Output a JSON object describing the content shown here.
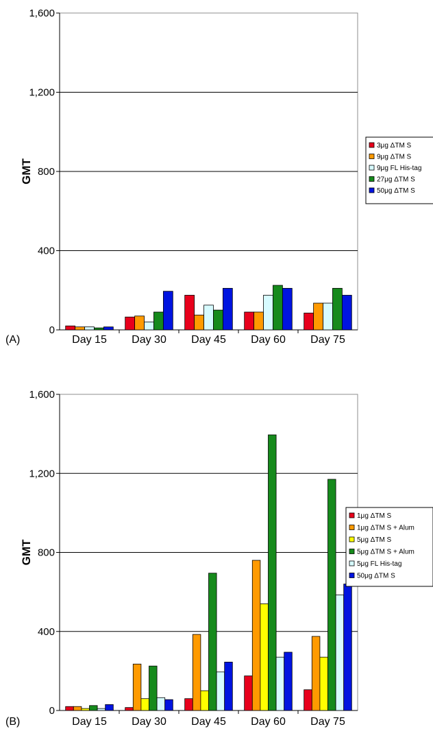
{
  "chart_data": [
    {
      "type": "bar",
      "panel_label": "(A)",
      "ylabel": "GMT",
      "ylim": [
        0,
        1600
      ],
      "yticks": [
        "0",
        "400",
        "800",
        "1,200",
        "1,600"
      ],
      "ytick_values": [
        0,
        400,
        800,
        1200,
        1600
      ],
      "grid": true,
      "legend_position": "right",
      "categories": [
        "Day 15",
        "Day 30",
        "Day 45",
        "Day 60",
        "Day 75"
      ],
      "series": [
        {
          "name": "3μg ΔTM S",
          "color": "#e8001c",
          "values": [
            20,
            65,
            175,
            90,
            85
          ]
        },
        {
          "name": "9μg ΔTM S",
          "color": "#ff9a00",
          "values": [
            15,
            70,
            75,
            90,
            135
          ]
        },
        {
          "name": "9μg FL His-tag",
          "color": "#d7fbff",
          "values": [
            15,
            40,
            125,
            175,
            135
          ]
        },
        {
          "name": "27μg ΔTM S",
          "color": "#168a1c",
          "values": [
            10,
            90,
            100,
            225,
            210
          ]
        },
        {
          "name": "50μg ΔTM S",
          "color": "#0014e0",
          "values": [
            15,
            195,
            210,
            210,
            175
          ]
        }
      ]
    },
    {
      "type": "bar",
      "panel_label": "(B)",
      "ylabel": "GMT",
      "ylim": [
        0,
        1600
      ],
      "yticks": [
        "0",
        "400",
        "800",
        "1,200",
        "1,600"
      ],
      "ytick_values": [
        0,
        400,
        800,
        1200,
        1600
      ],
      "grid": true,
      "legend_position": "right",
      "categories": [
        "Day 15",
        "Day 30",
        "Day 45",
        "Day 60",
        "Day 75"
      ],
      "series": [
        {
          "name": "1μg ΔTM S",
          "color": "#e8001c",
          "values": [
            20,
            15,
            60,
            175,
            105
          ]
        },
        {
          "name": "1μg ΔTM S + Alum",
          "color": "#ff9a00",
          "values": [
            20,
            235,
            385,
            760,
            375
          ]
        },
        {
          "name": "5μg ΔTM S",
          "color": "#ffff00",
          "values": [
            10,
            60,
            100,
            540,
            270
          ]
        },
        {
          "name": "5μg ΔTM S + Alum",
          "color": "#168a1c",
          "values": [
            25,
            225,
            695,
            1395,
            1170
          ]
        },
        {
          "name": "5μg FL His-tag",
          "color": "#d7fbff",
          "values": [
            10,
            65,
            195,
            270,
            585
          ]
        },
        {
          "name": "50μg ΔTM S",
          "color": "#0014e0",
          "values": [
            30,
            55,
            245,
            295,
            640
          ]
        }
      ]
    }
  ]
}
